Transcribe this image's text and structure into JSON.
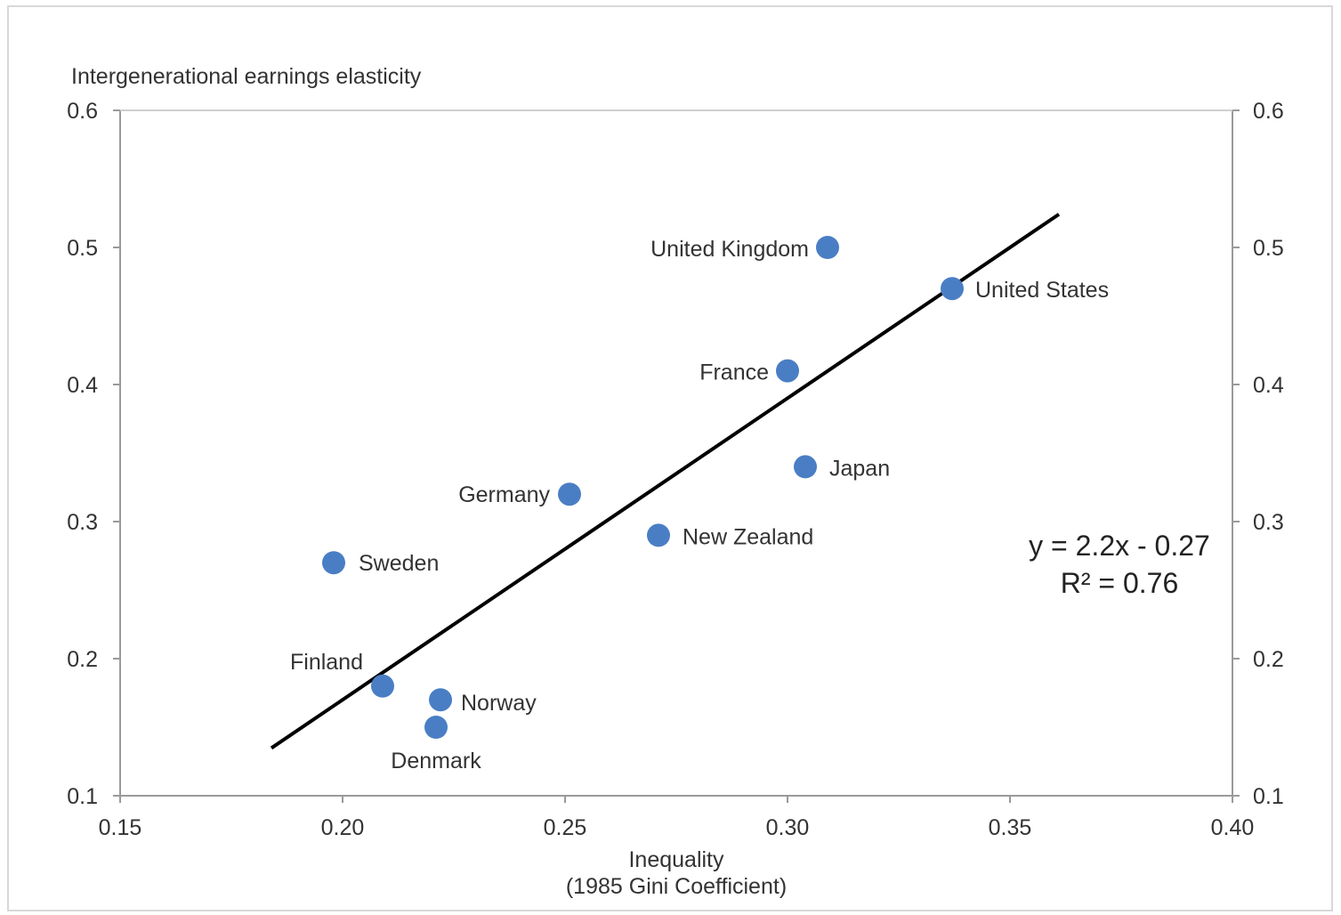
{
  "chart_data": {
    "type": "scatter",
    "ylabel": "Intergenerational earnings elasticity",
    "xlabel_line1": "Inequality",
    "xlabel_line2": "(1985 Gini Coefficient)",
    "xlim": [
      0.15,
      0.4
    ],
    "ylim": [
      0.1,
      0.6
    ],
    "x_ticks": [
      "0.15",
      "0.20",
      "0.25",
      "0.30",
      "0.35",
      "0.40"
    ],
    "y_ticks": [
      "0.1",
      "0.2",
      "0.3",
      "0.4",
      "0.5",
      "0.6"
    ],
    "y_ticks_right": [
      "0.1",
      "0.2",
      "0.3",
      "0.4",
      "0.5",
      "0.6"
    ],
    "point_color": "#4a7ec4",
    "trendline_color": "#000000",
    "points": [
      {
        "label": "Sweden",
        "x": 0.198,
        "y": 0.27
      },
      {
        "label": "Finland",
        "x": 0.209,
        "y": 0.18
      },
      {
        "label": "Norway",
        "x": 0.222,
        "y": 0.17
      },
      {
        "label": "Denmark",
        "x": 0.221,
        "y": 0.15
      },
      {
        "label": "Germany",
        "x": 0.251,
        "y": 0.32
      },
      {
        "label": "New Zealand",
        "x": 0.271,
        "y": 0.29
      },
      {
        "label": "France",
        "x": 0.3,
        "y": 0.41
      },
      {
        "label": "Japan",
        "x": 0.304,
        "y": 0.34
      },
      {
        "label": "United Kingdom",
        "x": 0.309,
        "y": 0.5
      },
      {
        "label": "United States",
        "x": 0.337,
        "y": 0.47
      }
    ],
    "trendline": {
      "x0": 0.184,
      "x1": 0.361
    },
    "equation": "y = 2.2x - 0.27",
    "r_squared": "R² = 0.76"
  }
}
